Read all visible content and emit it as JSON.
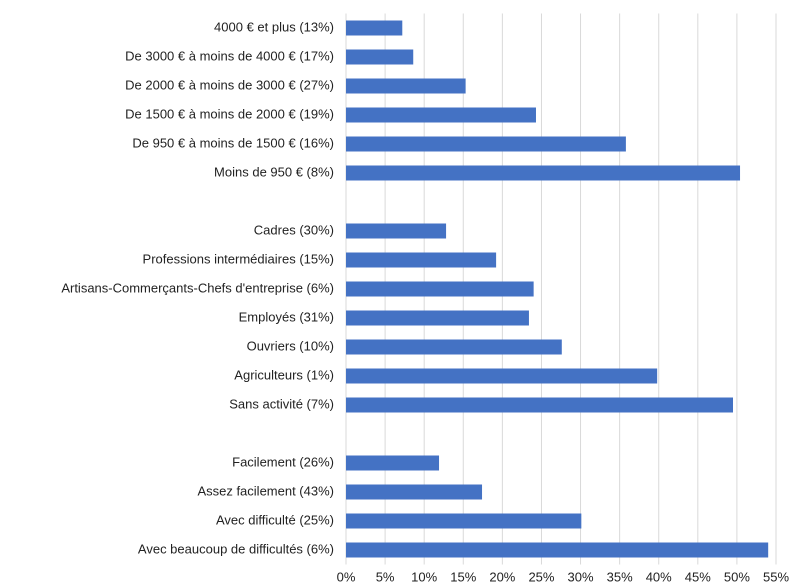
{
  "chart_data": {
    "type": "barh",
    "categories": [
      "4000 € et plus (13%)",
      "De 3000 € à moins de 4000 € (17%)",
      "De 2000 € à moins de 3000 € (27%)",
      "De 1500 € à moins de 2000 € (19%)",
      "De 950 € à moins de 1500 € (16%)",
      "Moins de 950 € (8%)",
      null,
      "Cadres (30%)",
      "Professions intermédiaires (15%)",
      "Artisans-Commerçants-Chefs d'entreprise (6%)",
      "Employés (31%)",
      "Ouvriers (10%)",
      "Agriculteurs (1%)",
      "Sans activité (7%)",
      null,
      "Facilement (26%)",
      "Assez facilement (43%)",
      "Avec difficulté (25%)",
      "Avec beaucoup de difficultés (6%)"
    ],
    "values": [
      7.2,
      8.6,
      15.3,
      24.3,
      35.8,
      50.4,
      null,
      12.8,
      19.2,
      24.0,
      23.4,
      27.6,
      39.8,
      49.5,
      null,
      11.9,
      17.4,
      30.1,
      54.0
    ],
    "color": "#4472c4",
    "xlim": [
      0,
      55
    ],
    "xticks": [
      {
        "value": 0,
        "label": "0%"
      },
      {
        "value": 5,
        "label": "5%"
      },
      {
        "value": 10,
        "label": "10%"
      },
      {
        "value": 15,
        "label": "15%"
      },
      {
        "value": 20,
        "label": "20%"
      },
      {
        "value": 25,
        "label": "25%"
      },
      {
        "value": 30,
        "label": "30%"
      },
      {
        "value": 35,
        "label": "35%"
      },
      {
        "value": 40,
        "label": "40%"
      },
      {
        "value": 45,
        "label": "45%"
      },
      {
        "value": 50,
        "label": "50%"
      },
      {
        "value": 55,
        "label": "55%"
      }
    ],
    "grid": true
  }
}
